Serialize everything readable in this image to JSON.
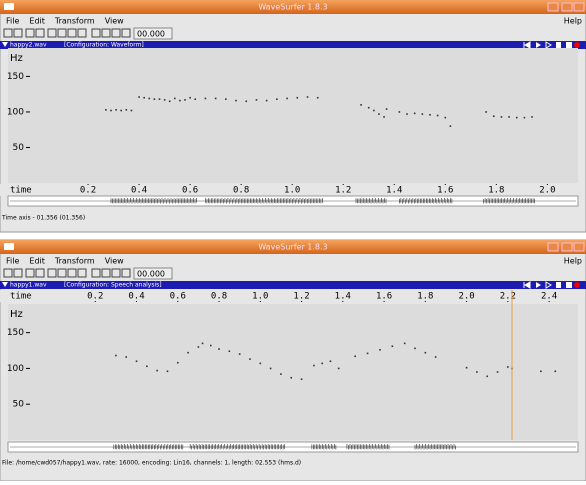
{
  "windows": [
    {
      "title": "WaveSurfer 1.8.3",
      "menu": [
        "File",
        "Edit",
        "Transform",
        "View"
      ],
      "help": "Help",
      "time_field": "00.000",
      "file": "happy2.wav",
      "configuration": "[Configuration: Waveform]",
      "pane_label": "Hz",
      "time_label": "time",
      "status": "Time axis - 01.356 (01.356)",
      "chart_data": {
        "type": "scatter",
        "color": "#333333",
        "x": [
          0.27,
          0.29,
          0.31,
          0.33,
          0.35,
          0.37,
          0.4,
          0.42,
          0.44,
          0.46,
          0.48,
          0.5,
          0.52,
          0.54,
          0.56,
          0.58,
          0.6,
          0.62,
          0.66,
          0.7,
          0.74,
          0.78,
          0.82,
          0.86,
          0.9,
          0.94,
          0.98,
          1.02,
          1.06,
          1.1,
          1.27,
          1.3,
          1.32,
          1.34,
          1.36,
          1.37,
          1.42,
          1.45,
          1.48,
          1.51,
          1.54,
          1.57,
          1.6,
          1.62,
          1.76,
          1.79,
          1.82,
          1.85,
          1.88,
          1.91,
          1.94
        ],
        "y": [
          103,
          102,
          103,
          102,
          103,
          102,
          121,
          120,
          119,
          118,
          118,
          117,
          115,
          119,
          116,
          117,
          120,
          118,
          119,
          119,
          118,
          116,
          115,
          117,
          116,
          118,
          119,
          120,
          121,
          120,
          110,
          106,
          102,
          97,
          93,
          104,
          100,
          97,
          98,
          97,
          96,
          95,
          92,
          80,
          100,
          94,
          93,
          93,
          92,
          92,
          93
        ],
        "xlim": [
          0,
          2.12
        ],
        "ylim": [
          0,
          190
        ],
        "xticks": [
          0.2,
          0.4,
          0.6,
          0.8,
          {
            "value": 1,
            "label": "1.0"
          },
          1.2,
          1.4,
          1.6,
          1.8,
          {
            "value": 2,
            "label": "2.0"
          }
        ],
        "yticks": [
          50,
          100,
          150
        ]
      }
    },
    {
      "title": "WaveSurfer 1.8.3",
      "menu": [
        "File",
        "Edit",
        "Transform",
        "View"
      ],
      "help": "Help",
      "time_field": "00.000",
      "file": "happy1.wav",
      "configuration": "[Configuration: Speech analysis]",
      "pane_label": "Hz",
      "time_label": "time",
      "status": "File: /home/cwd057/happy1.wav, rate: 16000, encoding: Lin16, channels: 1, length: 02.553 (hms.d)",
      "chart_data": {
        "type": "scatter",
        "color": "#333333",
        "x": [
          0.3,
          0.35,
          0.4,
          0.45,
          0.5,
          0.55,
          0.6,
          0.65,
          0.7,
          0.72,
          0.76,
          0.8,
          0.85,
          0.9,
          0.95,
          1.0,
          1.05,
          1.1,
          1.15,
          1.2,
          1.26,
          1.3,
          1.34,
          1.38,
          1.46,
          1.52,
          1.58,
          1.64,
          1.7,
          1.75,
          1.8,
          1.85,
          2.0,
          2.05,
          2.1,
          2.15,
          2.2,
          2.22,
          2.36,
          2.43
        ],
        "y": [
          118,
          116,
          110,
          103,
          97,
          96,
          108,
          122,
          130,
          135,
          132,
          127,
          124,
          120,
          113,
          107,
          100,
          92,
          87,
          85,
          104,
          107,
          110,
          100,
          117,
          121,
          126,
          131,
          135,
          128,
          122,
          116,
          101,
          95,
          89,
          95,
          102,
          100,
          96,
          96
        ],
        "xlim": [
          0,
          2.54
        ],
        "ylim": [
          0,
          190
        ],
        "xticks": [
          0.2,
          0.4,
          0.6,
          0.8,
          {
            "value": 1,
            "label": "1.0"
          },
          1.2,
          1.4,
          1.6,
          1.8,
          {
            "value": 2,
            "label": "2.0"
          },
          2.2,
          2.4
        ],
        "yticks": [
          50,
          100,
          150
        ]
      }
    }
  ]
}
